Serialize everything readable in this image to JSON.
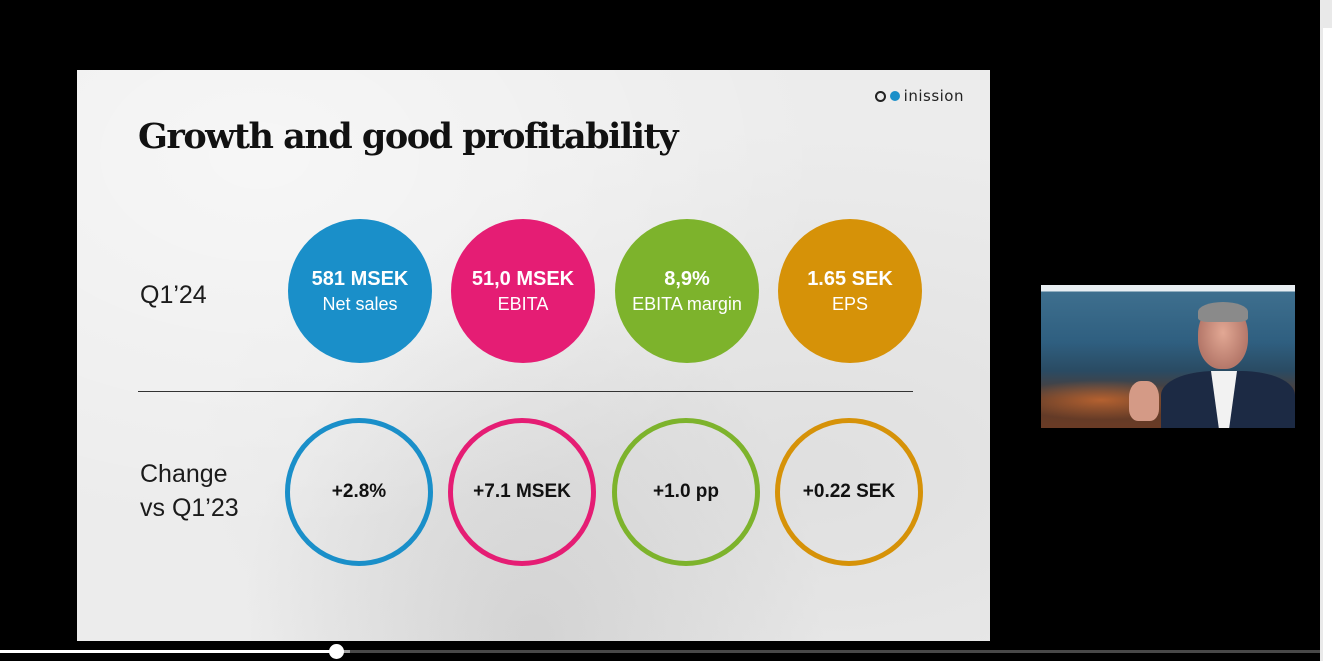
{
  "slide": {
    "title": "Growth and good profitability",
    "logo_text": "inission",
    "rows": {
      "current_label": "Q1’24",
      "change_label_line1": "Change",
      "change_label_line2": "vs Q1’23"
    },
    "kpis": [
      {
        "value": "581 MSEK",
        "label": "Net sales",
        "color": "#1a8fc9"
      },
      {
        "value": "51,0 MSEK",
        "label": "EBITA",
        "color": "#e51d74"
      },
      {
        "value": "8,9%",
        "label": "EBITA margin",
        "color": "#7db32c"
      },
      {
        "value": "1.65 SEK",
        "label": "EPS",
        "color": "#d69208"
      }
    ],
    "changes": [
      {
        "value": "+2.8%",
        "color": "#1a8fc9"
      },
      {
        "value": "+7.1 MSEK",
        "color": "#e51d74"
      },
      {
        "value": "+1.0 pp",
        "color": "#7db32c"
      },
      {
        "value": "+0.22 SEK",
        "color": "#d69208"
      }
    ]
  },
  "player": {
    "progress_fraction": 0.255,
    "buffered_fraction": 0.265
  }
}
